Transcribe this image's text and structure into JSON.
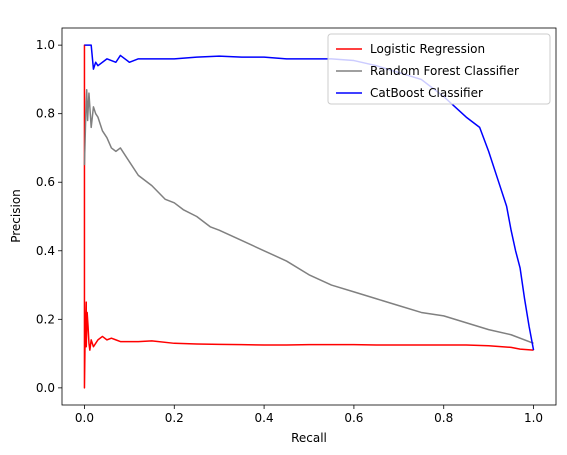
{
  "chart_data": {
    "type": "line",
    "title": "",
    "xlabel": "Recall",
    "ylabel": "Precision",
    "xlim": [
      -0.05,
      1.05
    ],
    "ylim": [
      -0.05,
      1.05
    ],
    "xticks": [
      0.0,
      0.2,
      0.4,
      0.6,
      0.8,
      1.0
    ],
    "yticks": [
      0.0,
      0.2,
      0.4,
      0.6,
      0.8,
      1.0
    ],
    "xtick_labels": [
      "0.0",
      "0.2",
      "0.4",
      "0.6",
      "0.8",
      "1.0"
    ],
    "ytick_labels": [
      "0.0",
      "0.2",
      "0.4",
      "0.6",
      "0.8",
      "1.0"
    ],
    "grid": false,
    "legend_position": "top-right",
    "series": [
      {
        "name": "Logistic Regression",
        "color": "#ff0000",
        "x": [
          0.0,
          0.0,
          0.0,
          0.002,
          0.002,
          0.004,
          0.004,
          0.006,
          0.008,
          0.01,
          0.012,
          0.015,
          0.02,
          0.025,
          0.03,
          0.04,
          0.05,
          0.06,
          0.07,
          0.08,
          0.1,
          0.12,
          0.15,
          0.2,
          0.25,
          0.3,
          0.35,
          0.4,
          0.45,
          0.5,
          0.55,
          0.6,
          0.65,
          0.7,
          0.75,
          0.8,
          0.85,
          0.9,
          0.95,
          0.97,
          1.0
        ],
        "y": [
          0.0,
          1.0,
          0.0,
          0.2,
          0.15,
          0.25,
          0.12,
          0.22,
          0.18,
          0.13,
          0.11,
          0.14,
          0.12,
          0.13,
          0.14,
          0.15,
          0.14,
          0.145,
          0.14,
          0.135,
          0.135,
          0.135,
          0.137,
          0.13,
          0.128,
          0.127,
          0.126,
          0.125,
          0.125,
          0.126,
          0.126,
          0.126,
          0.125,
          0.125,
          0.125,
          0.125,
          0.125,
          0.123,
          0.118,
          0.113,
          0.11
        ]
      },
      {
        "name": "Random Forest Classifier",
        "color": "#808080",
        "x": [
          0.0,
          0.003,
          0.005,
          0.007,
          0.01,
          0.015,
          0.02,
          0.025,
          0.03,
          0.04,
          0.05,
          0.06,
          0.07,
          0.08,
          0.1,
          0.12,
          0.15,
          0.18,
          0.2,
          0.22,
          0.25,
          0.28,
          0.3,
          0.35,
          0.4,
          0.45,
          0.5,
          0.55,
          0.6,
          0.65,
          0.7,
          0.75,
          0.8,
          0.85,
          0.9,
          0.95,
          1.0
        ],
        "y": [
          0.65,
          0.8,
          0.87,
          0.78,
          0.86,
          0.76,
          0.82,
          0.8,
          0.79,
          0.75,
          0.73,
          0.7,
          0.69,
          0.7,
          0.66,
          0.62,
          0.59,
          0.55,
          0.54,
          0.52,
          0.5,
          0.47,
          0.46,
          0.43,
          0.4,
          0.37,
          0.33,
          0.3,
          0.28,
          0.26,
          0.24,
          0.22,
          0.21,
          0.19,
          0.17,
          0.155,
          0.13
        ]
      },
      {
        "name": "CatBoost Classifier",
        "color": "#0000ff",
        "x": [
          0.0,
          0.005,
          0.01,
          0.015,
          0.02,
          0.025,
          0.03,
          0.05,
          0.07,
          0.08,
          0.1,
          0.12,
          0.15,
          0.2,
          0.25,
          0.3,
          0.35,
          0.4,
          0.45,
          0.5,
          0.55,
          0.6,
          0.65,
          0.7,
          0.75,
          0.8,
          0.85,
          0.88,
          0.9,
          0.92,
          0.94,
          0.95,
          0.96,
          0.97,
          0.98,
          0.99,
          1.0
        ],
        "y": [
          1.0,
          1.0,
          1.0,
          1.0,
          0.93,
          0.95,
          0.94,
          0.96,
          0.95,
          0.97,
          0.95,
          0.96,
          0.96,
          0.96,
          0.965,
          0.968,
          0.965,
          0.965,
          0.96,
          0.96,
          0.96,
          0.955,
          0.94,
          0.92,
          0.9,
          0.85,
          0.79,
          0.76,
          0.69,
          0.61,
          0.53,
          0.46,
          0.4,
          0.35,
          0.26,
          0.18,
          0.11
        ]
      }
    ]
  }
}
